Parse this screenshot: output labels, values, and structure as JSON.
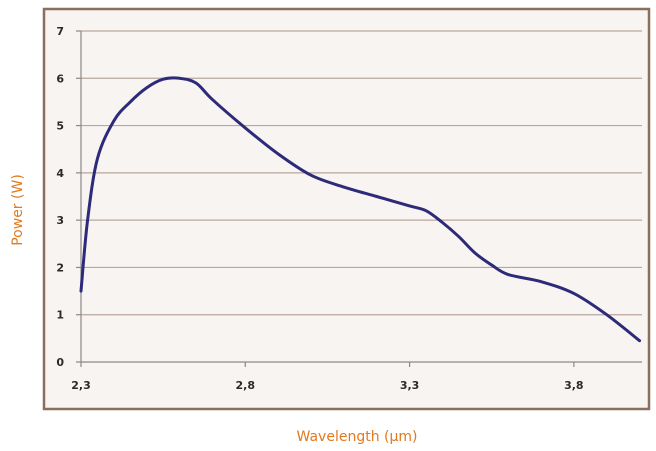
{
  "chart_data": {
    "type": "line",
    "title": "",
    "xlabel": "Wavelength (µm)",
    "ylabel": "Power (W)",
    "xlim": [
      2.3,
      4.05
    ],
    "ylim": [
      0,
      7
    ],
    "x_ticks": [
      2.3,
      2.8,
      3.3,
      3.8
    ],
    "x_tick_labels": [
      "2,3",
      "2,8",
      "3,3",
      "3,8"
    ],
    "y_ticks": [
      0,
      1,
      2,
      3,
      4,
      5,
      6,
      7
    ],
    "y_tick_labels": [
      "0",
      "1",
      "2",
      "3",
      "4",
      "5",
      "6",
      "7"
    ],
    "grid": "horizontal",
    "legend": "none",
    "series": [
      {
        "color": "#2e2a7a",
        "x": [
          2.3,
          2.32,
          2.35,
          2.4,
          2.45,
          2.5,
          2.55,
          2.6,
          2.65,
          2.7,
          2.8,
          2.9,
          3.0,
          3.1,
          3.2,
          3.3,
          3.35,
          3.4,
          3.45,
          3.5,
          3.55,
          3.6,
          3.7,
          3.8,
          3.9,
          4.0
        ],
        "values": [
          1.5,
          3.0,
          4.3,
          5.1,
          5.5,
          5.8,
          5.98,
          6.0,
          5.9,
          5.55,
          4.95,
          4.4,
          3.95,
          3.7,
          3.5,
          3.3,
          3.2,
          2.95,
          2.65,
          2.3,
          2.05,
          1.85,
          1.7,
          1.45,
          1.0,
          0.45
        ]
      }
    ]
  }
}
